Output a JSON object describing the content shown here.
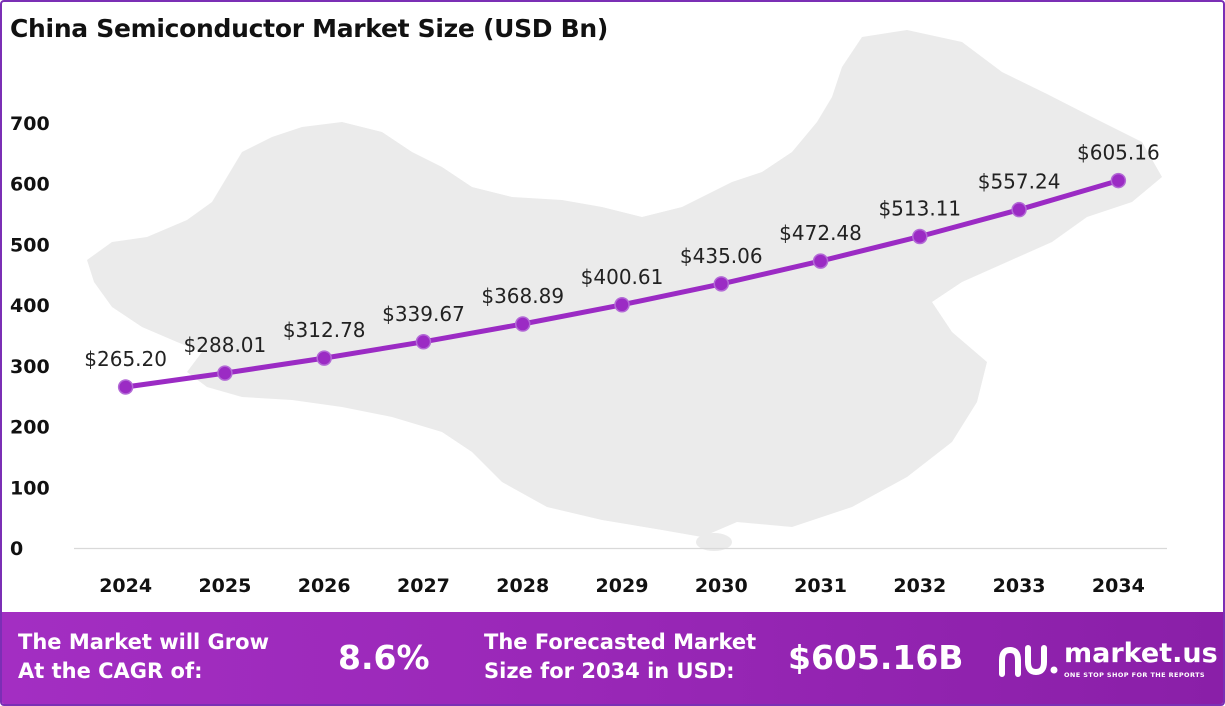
{
  "header": {
    "title": "China Semiconductor Market Size (USD Bn)"
  },
  "chart_data": {
    "type": "line",
    "title": "China Semiconductor Market Size (USD Bn)",
    "xlabel": "",
    "ylabel": "",
    "categories": [
      "2024",
      "2025",
      "2026",
      "2027",
      "2028",
      "2029",
      "2030",
      "2031",
      "2032",
      "2033",
      "2034"
    ],
    "values": [
      265.2,
      288.01,
      312.78,
      339.67,
      368.89,
      400.61,
      435.06,
      472.48,
      513.11,
      557.24,
      605.16
    ],
    "data_labels": [
      "$265.20",
      "$288.01",
      "$312.78",
      "$339.67",
      "$368.89",
      "$400.61",
      "$435.06",
      "$472.48",
      "$513.11",
      "$557.24",
      "$605.16"
    ],
    "y_ticks": [
      "0",
      "100",
      "200",
      "300",
      "400",
      "500",
      "600",
      "700"
    ],
    "ylim": [
      0,
      700
    ],
    "grid": false,
    "legend": "none",
    "line_color": "#9b2bc4"
  },
  "footer": {
    "cagr_line1": "The Market will Grow",
    "cagr_line2": "At the CAGR of:",
    "cagr_value": "8.6%",
    "forecast_line1": "The Forecasted Market",
    "forecast_line2": "Size for 2034 in USD:",
    "forecast_value": "$605.16B",
    "logo_name": "market.us",
    "logo_tagline": "ONE STOP SHOP FOR THE REPORTS"
  },
  "colors": {
    "accent": "#9b2bc4",
    "footer_bg": "#9a28b8",
    "frame": "#7b2fb5",
    "map_fill": "#e9e9e9"
  }
}
